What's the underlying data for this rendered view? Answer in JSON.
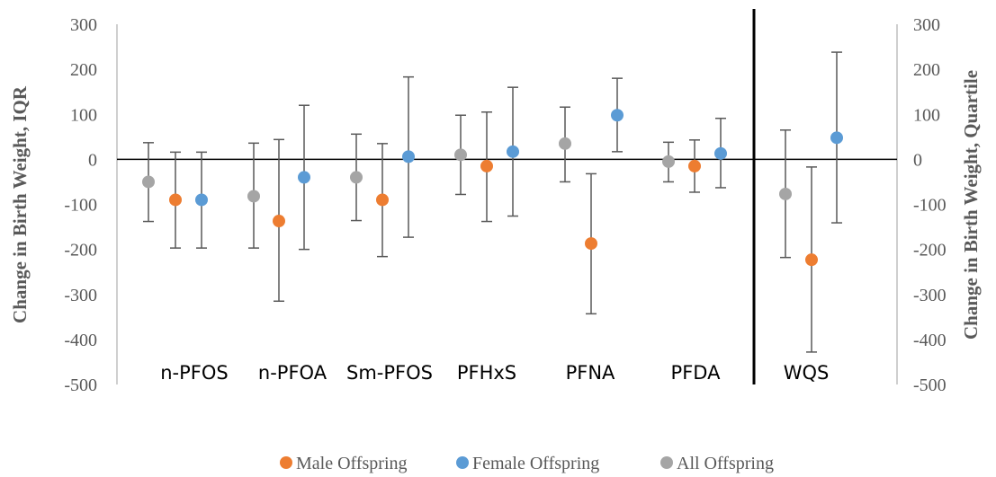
{
  "chart_data": {
    "type": "scatter",
    "ylim": [
      -500,
      300
    ],
    "y_ticks": [
      "300",
      "200",
      "100",
      "0",
      "-100",
      "-200",
      "-300",
      "-400",
      "-500"
    ],
    "ylabel": "Change in Birth Weight, IQR",
    "ylabel_right": "Change in Birth Weight, Quartile",
    "categories": [
      "n-PFOS",
      "n-PFOA",
      "Sm-PFOS",
      "PFHxS",
      "PFNA",
      "PFDA",
      "WQS"
    ],
    "legend_position": "bottom",
    "series": [
      {
        "name": "All Offspring",
        "color": "#A5A5A5",
        "points": [
          {
            "category": "n-PFOS",
            "y": -50,
            "lower": -138,
            "upper": 37
          },
          {
            "category": "n-PFOA",
            "y": -82,
            "lower": -197,
            "upper": 36
          },
          {
            "category": "Sm-PFOS",
            "y": -40,
            "lower": -136,
            "upper": 56
          },
          {
            "category": "PFHxS",
            "y": 10,
            "lower": -78,
            "upper": 98
          },
          {
            "category": "PFNA",
            "y": 35,
            "lower": -50,
            "upper": 116
          },
          {
            "category": "PFDA",
            "y": -5,
            "lower": -50,
            "upper": 38
          },
          {
            "category": "WQS",
            "y": -77,
            "lower": -218,
            "upper": 65
          }
        ]
      },
      {
        "name": "Male Offspring",
        "color": "#ED7D31",
        "points": [
          {
            "category": "n-PFOS",
            "y": -90,
            "lower": -197,
            "upper": 16
          },
          {
            "category": "n-PFOA",
            "y": -137,
            "lower": -315,
            "upper": 44
          },
          {
            "category": "Sm-PFOS",
            "y": -90,
            "lower": -216,
            "upper": 35
          },
          {
            "category": "PFHxS",
            "y": -15,
            "lower": -138,
            "upper": 105
          },
          {
            "category": "PFNA",
            "y": -187,
            "lower": -343,
            "upper": -32
          },
          {
            "category": "PFDA",
            "y": -15,
            "lower": -73,
            "upper": 43
          },
          {
            "category": "WQS",
            "y": -223,
            "lower": -428,
            "upper": -17
          }
        ]
      },
      {
        "name": "Female Offspring",
        "color": "#5B9BD5",
        "points": [
          {
            "category": "n-PFOS",
            "y": -90,
            "lower": -197,
            "upper": 16
          },
          {
            "category": "n-PFOA",
            "y": -40,
            "lower": -200,
            "upper": 120
          },
          {
            "category": "Sm-PFOS",
            "y": 6,
            "lower": -173,
            "upper": 183
          },
          {
            "category": "PFHxS",
            "y": 17,
            "lower": -126,
            "upper": 160
          },
          {
            "category": "PFNA",
            "y": 98,
            "lower": 17,
            "upper": 180
          },
          {
            "category": "PFDA",
            "y": 13,
            "lower": -63,
            "upper": 91
          },
          {
            "category": "WQS",
            "y": 48,
            "lower": -141,
            "upper": 238
          }
        ]
      }
    ],
    "legend": [
      {
        "label": "Male Offspring",
        "color": "#ED7D31"
      },
      {
        "label": "Female Offspring",
        "color": "#5B9BD5"
      },
      {
        "label": "All Offspring",
        "color": "#A5A5A5"
      }
    ]
  }
}
